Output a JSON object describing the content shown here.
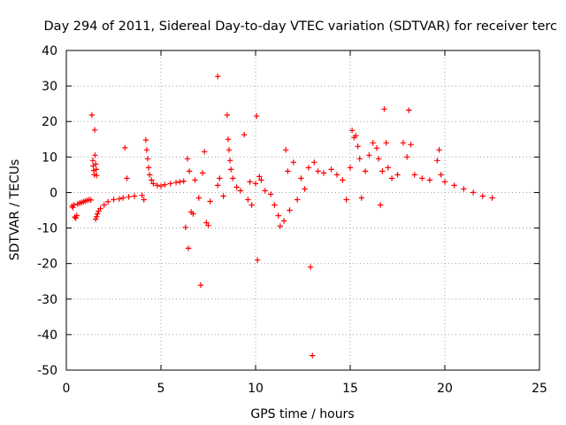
{
  "chart_data": {
    "type": "scatter",
    "title": "Day 294 of 2011, Sidereal Day-to-day VTEC variation (SDTVAR) for receiver terc",
    "xlabel": "GPS time / hours",
    "ylabel": "SDTVAR / TECUs",
    "xlim": [
      0,
      25
    ],
    "ylim": [
      -50,
      40
    ],
    "xticks": [
      "0",
      "5",
      "10",
      "15",
      "20",
      "25"
    ],
    "yticks": [
      "40",
      "30",
      "20",
      "10",
      "0",
      "-10",
      "-20",
      "-30",
      "-40",
      "-50"
    ],
    "grid": true,
    "marker": "+",
    "series": [
      {
        "name": "SDTVAR",
        "color": "#ff0000",
        "points": [
          [
            0.3,
            -3.8
          ],
          [
            0.35,
            -4.2
          ],
          [
            0.4,
            -3.5
          ],
          [
            0.45,
            -6.9
          ],
          [
            0.5,
            -7.2
          ],
          [
            0.55,
            -6.5
          ],
          [
            0.6,
            -3.2
          ],
          [
            0.7,
            -3.0
          ],
          [
            0.8,
            -2.8
          ],
          [
            0.9,
            -2.6
          ],
          [
            1.0,
            -2.4
          ],
          [
            1.1,
            -2.2
          ],
          [
            1.2,
            -2.0
          ],
          [
            1.3,
            -2.1
          ],
          [
            1.35,
            21.8
          ],
          [
            1.4,
            9.0
          ],
          [
            1.42,
            7.5
          ],
          [
            1.45,
            6.2
          ],
          [
            1.48,
            5.0
          ],
          [
            1.5,
            17.6
          ],
          [
            1.52,
            10.5
          ],
          [
            1.55,
            8.0
          ],
          [
            1.58,
            6.5
          ],
          [
            1.6,
            4.8
          ],
          [
            1.55,
            -7.5
          ],
          [
            1.6,
            -6.8
          ],
          [
            1.65,
            -6.0
          ],
          [
            1.7,
            -5.2
          ],
          [
            1.8,
            -4.5
          ],
          [
            2.0,
            -3.5
          ],
          [
            2.2,
            -2.6
          ],
          [
            2.5,
            -2.0
          ],
          [
            2.8,
            -1.8
          ],
          [
            3.0,
            -1.5
          ],
          [
            3.1,
            12.6
          ],
          [
            3.2,
            4.0
          ],
          [
            3.3,
            -1.2
          ],
          [
            3.6,
            -1.0
          ],
          [
            4.0,
            -0.8
          ],
          [
            4.1,
            -2.0
          ],
          [
            4.2,
            14.8
          ],
          [
            4.25,
            12.0
          ],
          [
            4.3,
            9.5
          ],
          [
            4.35,
            7.0
          ],
          [
            4.4,
            5.0
          ],
          [
            4.5,
            3.5
          ],
          [
            4.6,
            2.5
          ],
          [
            4.8,
            2.0
          ],
          [
            5.0,
            1.8
          ],
          [
            5.2,
            2.2
          ],
          [
            5.5,
            2.5
          ],
          [
            5.8,
            2.8
          ],
          [
            6.0,
            3.0
          ],
          [
            6.2,
            3.2
          ],
          [
            6.3,
            -9.8
          ],
          [
            6.4,
            9.5
          ],
          [
            6.45,
            -15.7
          ],
          [
            6.5,
            6.0
          ],
          [
            6.6,
            -5.5
          ],
          [
            6.7,
            -6.0
          ],
          [
            6.8,
            3.5
          ],
          [
            7.0,
            -1.5
          ],
          [
            7.1,
            -26.1
          ],
          [
            7.2,
            5.5
          ],
          [
            7.3,
            11.5
          ],
          [
            7.4,
            -8.5
          ],
          [
            7.5,
            -9.3
          ],
          [
            7.6,
            -2.5
          ],
          [
            8.0,
            32.7
          ],
          [
            8.0,
            2.0
          ],
          [
            8.1,
            4.0
          ],
          [
            8.3,
            -1.0
          ],
          [
            8.5,
            21.8
          ],
          [
            8.55,
            15.0
          ],
          [
            8.6,
            12.0
          ],
          [
            8.65,
            9.0
          ],
          [
            8.7,
            6.5
          ],
          [
            8.8,
            4.0
          ],
          [
            9.0,
            1.5
          ],
          [
            9.2,
            0.5
          ],
          [
            9.4,
            16.3
          ],
          [
            9.6,
            -2.0
          ],
          [
            9.7,
            3.0
          ],
          [
            9.8,
            -3.5
          ],
          [
            10.0,
            2.5
          ],
          [
            10.05,
            21.5
          ],
          [
            10.1,
            -19.0
          ],
          [
            10.2,
            4.5
          ],
          [
            10.3,
            3.5
          ],
          [
            10.5,
            0.5
          ],
          [
            10.8,
            -0.5
          ],
          [
            11.0,
            -3.5
          ],
          [
            11.2,
            -6.5
          ],
          [
            11.3,
            -9.5
          ],
          [
            11.5,
            -8.0
          ],
          [
            11.6,
            12.0
          ],
          [
            11.7,
            6.0
          ],
          [
            11.8,
            -5.0
          ],
          [
            12.0,
            8.5
          ],
          [
            12.2,
            -2.0
          ],
          [
            12.4,
            4.0
          ],
          [
            12.6,
            1.0
          ],
          [
            12.8,
            7.0
          ],
          [
            12.9,
            -21.0
          ],
          [
            13.0,
            -45.9
          ],
          [
            13.1,
            8.5
          ],
          [
            13.3,
            6.0
          ],
          [
            13.6,
            5.5
          ],
          [
            14.0,
            6.5
          ],
          [
            14.3,
            5.0
          ],
          [
            14.6,
            3.5
          ],
          [
            14.8,
            -2.0
          ],
          [
            15.0,
            7.0
          ],
          [
            15.1,
            17.5
          ],
          [
            15.2,
            15.5
          ],
          [
            15.3,
            16.0
          ],
          [
            15.4,
            13.0
          ],
          [
            15.5,
            9.5
          ],
          [
            15.6,
            -1.5
          ],
          [
            15.8,
            6.0
          ],
          [
            16.0,
            10.5
          ],
          [
            16.2,
            14.0
          ],
          [
            16.4,
            12.5
          ],
          [
            16.5,
            9.5
          ],
          [
            16.6,
            -3.5
          ],
          [
            16.7,
            6.0
          ],
          [
            16.8,
            23.5
          ],
          [
            16.9,
            14.0
          ],
          [
            17.0,
            7.0
          ],
          [
            17.2,
            4.0
          ],
          [
            17.5,
            5.0
          ],
          [
            17.8,
            14.0
          ],
          [
            18.0,
            10.0
          ],
          [
            18.1,
            23.2
          ],
          [
            18.2,
            13.5
          ],
          [
            18.4,
            5.0
          ],
          [
            18.8,
            4.0
          ],
          [
            19.2,
            3.5
          ],
          [
            19.6,
            9.0
          ],
          [
            19.7,
            12.0
          ],
          [
            19.8,
            5.0
          ],
          [
            20.0,
            3.0
          ],
          [
            20.5,
            2.0
          ],
          [
            21.0,
            1.0
          ],
          [
            21.5,
            0.0
          ],
          [
            22.0,
            -1.0
          ],
          [
            22.5,
            -1.5
          ]
        ]
      }
    ]
  }
}
